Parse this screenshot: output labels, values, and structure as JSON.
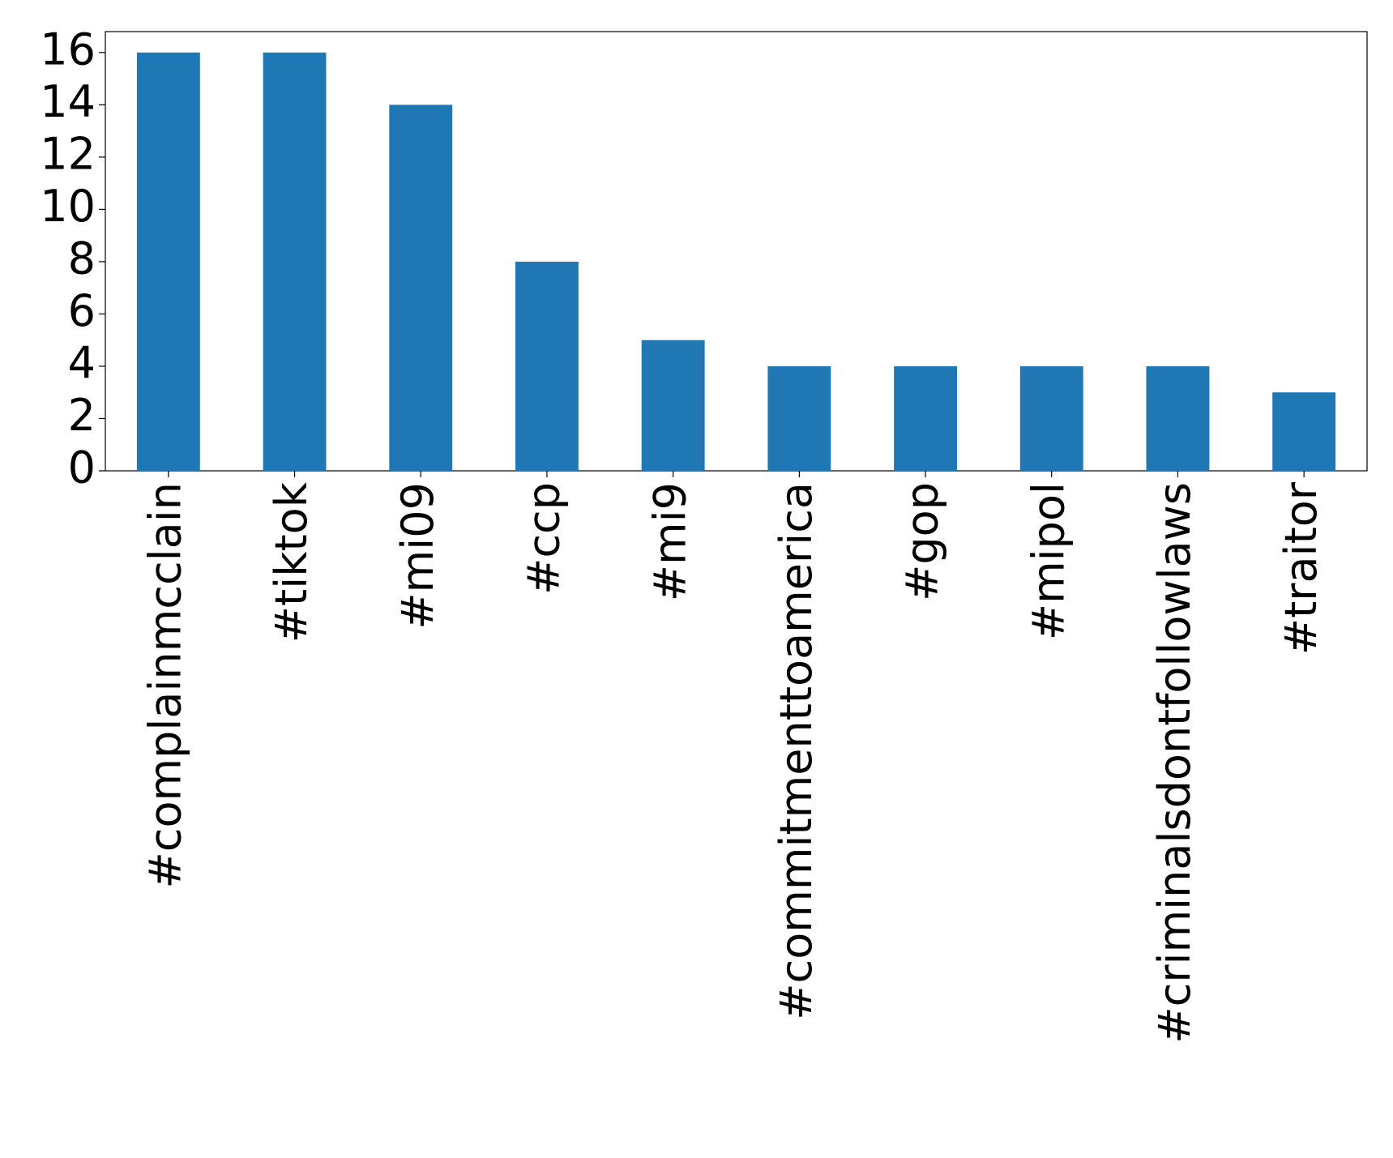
{
  "chart_data": {
    "type": "bar",
    "categories": [
      "#complainmcclain",
      "#tiktok",
      "#mi09",
      "#ccp",
      "#mi9",
      "#commitmenttoamerica",
      "#gop",
      "#mipol",
      "#criminalsdontfollowlaws",
      "#traitor"
    ],
    "values": [
      16,
      16,
      14,
      8,
      5,
      4,
      4,
      4,
      4,
      3
    ],
    "color": "#1f77b4",
    "ylim": [
      0,
      16.8
    ],
    "yticks": [
      0,
      2,
      4,
      6,
      8,
      10,
      12,
      14,
      16
    ],
    "grid": false
  }
}
